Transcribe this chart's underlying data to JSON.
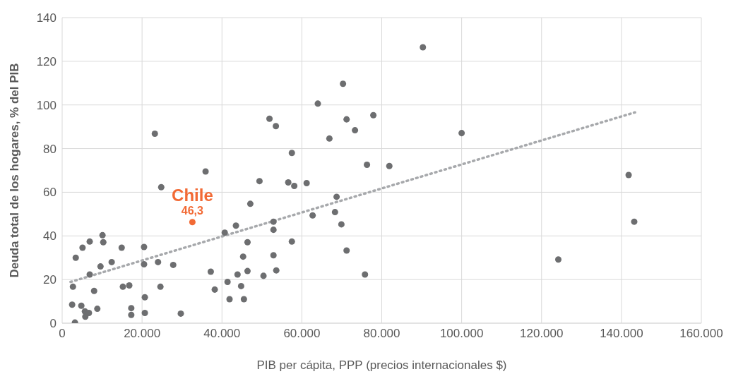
{
  "chart_data": {
    "type": "scatter",
    "xlabel": "PIB per cápita, PPP (precios internacionales $)",
    "ylabel": "Deuda total de los hogares, % del PIB",
    "xlim": [
      0,
      160000
    ],
    "xticks": [
      0,
      {
        "value": 20000,
        "label": "20.000"
      },
      {
        "value": 40000,
        "label": "40.000"
      },
      {
        "value": 60000,
        "label": "60.000"
      },
      {
        "value": 80000,
        "label": "80.000"
      },
      {
        "value": 100000,
        "label": "100.000"
      },
      {
        "value": 120000,
        "label": "120.000"
      },
      {
        "value": 140000,
        "label": "140.000"
      },
      {
        "value": 160000,
        "label": "160.000"
      }
    ],
    "ylim": [
      0,
      140
    ],
    "yticks": [
      0,
      20,
      40,
      60,
      80,
      100,
      120,
      140
    ],
    "grid": true,
    "marker": "circle",
    "series": [
      {
        "color": "#6d6e70",
        "x": [
          2700,
          2500,
          3200,
          3400,
          4800,
          5100,
          5800,
          5700,
          6700,
          6900,
          6900,
          8000,
          8800,
          9600,
          10100,
          10300,
          12400,
          14900,
          15200,
          16800,
          17300,
          17300,
          20500,
          20500,
          20700,
          20700,
          23200,
          24000,
          24600,
          24800,
          27800,
          29700,
          35900,
          37200,
          38200,
          40700,
          41400,
          41900,
          43500,
          43900,
          44800,
          45300,
          45500,
          46400,
          46400,
          47100,
          49400,
          50400,
          51900,
          52900,
          52900,
          52900,
          53500,
          53600,
          56600,
          57500,
          57500,
          58100,
          61200,
          62700,
          64000,
          66900,
          68300,
          68700,
          69900,
          70300,
          71200,
          71200,
          73300,
          75800,
          76300,
          77900,
          81900,
          90300,
          100000,
          124200,
          141800,
          143200
        ],
        "values": [
          16.7,
          8.5,
          0.3,
          30,
          8,
          34.6,
          3,
          5.4,
          4.7,
          37.4,
          22.3,
          14.8,
          6.6,
          26,
          40.3,
          37.1,
          28,
          34.6,
          16.7,
          17.3,
          6.9,
          3.8,
          34.9,
          27,
          11.9,
          4.7,
          86.8,
          28,
          16.7,
          62.3,
          26.7,
          4.4,
          69.5,
          23.6,
          15.4,
          41.5,
          18.9,
          11,
          44.7,
          22.3,
          17,
          30.5,
          11,
          37.1,
          23.9,
          54.7,
          65.1,
          21.7,
          93.7,
          46.5,
          42.8,
          31.1,
          90.3,
          24.2,
          64.5,
          78,
          37.4,
          62.9,
          64.2,
          49.4,
          100.6,
          84.6,
          50.9,
          57.9,
          45.3,
          109.7,
          93.4,
          33.3,
          88.4,
          22.3,
          72.6,
          95.3,
          72,
          126.4,
          87.1,
          29.2,
          67.9,
          46.5
        ]
      },
      {
        "name": "Chile",
        "color": "#f26a35",
        "x": [
          32600
        ],
        "values": [
          46.3
        ],
        "value_labels": [
          "46,3"
        ]
      },
      {
        "type": "line",
        "color": "#a7a9ac",
        "line_style": "dotted",
        "marker": "none",
        "x": [
          2100,
          143400
        ],
        "values": [
          18.9,
          96.6
        ]
      }
    ]
  }
}
